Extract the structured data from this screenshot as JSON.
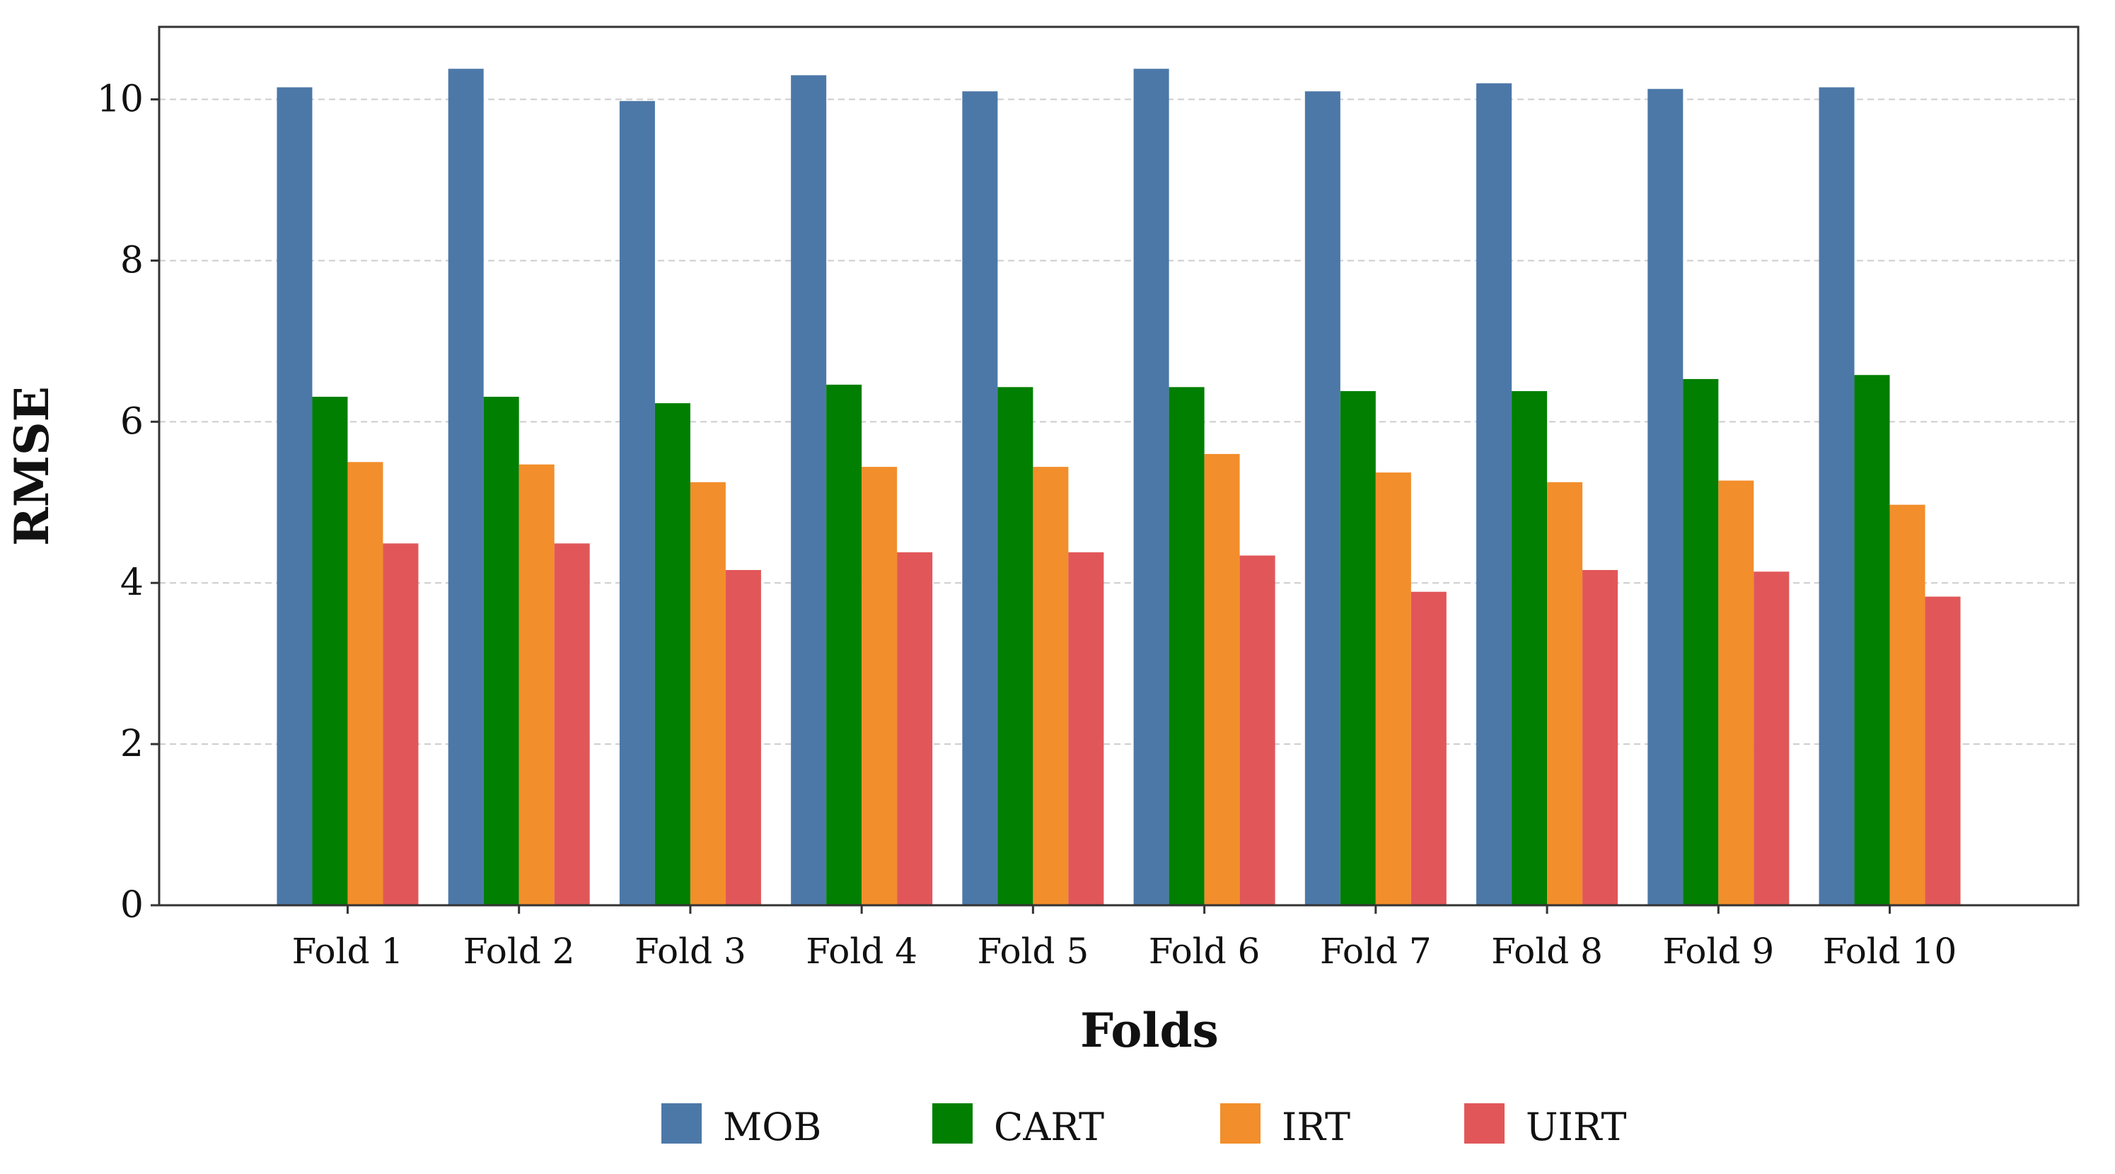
{
  "chart_data": {
    "type": "bar",
    "title": "",
    "xlabel": "Folds",
    "ylabel": "RMSE",
    "ylim": [
      0,
      10.9
    ],
    "yticks": [
      0,
      2,
      4,
      6,
      8,
      10
    ],
    "ytick_labels": [
      "0",
      "2",
      "4",
      "6",
      "8",
      "10"
    ],
    "grid": "horizontal dashed",
    "legend_position": "bottom-center",
    "categories": [
      "Fold 1",
      "Fold 2",
      "Fold 3",
      "Fold 4",
      "Fold 5",
      "Fold 6",
      "Fold 7",
      "Fold 8",
      "Fold 9",
      "Fold 10"
    ],
    "series": [
      {
        "name": "MOB",
        "color": "#4c78a8",
        "values": [
          10.15,
          10.38,
          9.98,
          10.3,
          10.1,
          10.38,
          10.1,
          10.2,
          10.13,
          10.15
        ]
      },
      {
        "name": "CART",
        "color": "#007f00",
        "values": [
          6.31,
          6.31,
          6.23,
          6.46,
          6.43,
          6.43,
          6.38,
          6.38,
          6.53,
          6.58
        ]
      },
      {
        "name": "IRT",
        "color": "#f28e2b",
        "values": [
          5.5,
          5.47,
          5.25,
          5.44,
          5.44,
          5.6,
          5.37,
          5.25,
          5.27,
          4.97
        ]
      },
      {
        "name": "UIRT",
        "color": "#e15759",
        "values": [
          4.49,
          4.49,
          4.16,
          4.38,
          4.38,
          4.34,
          3.89,
          4.16,
          4.14,
          3.83
        ]
      }
    ]
  }
}
